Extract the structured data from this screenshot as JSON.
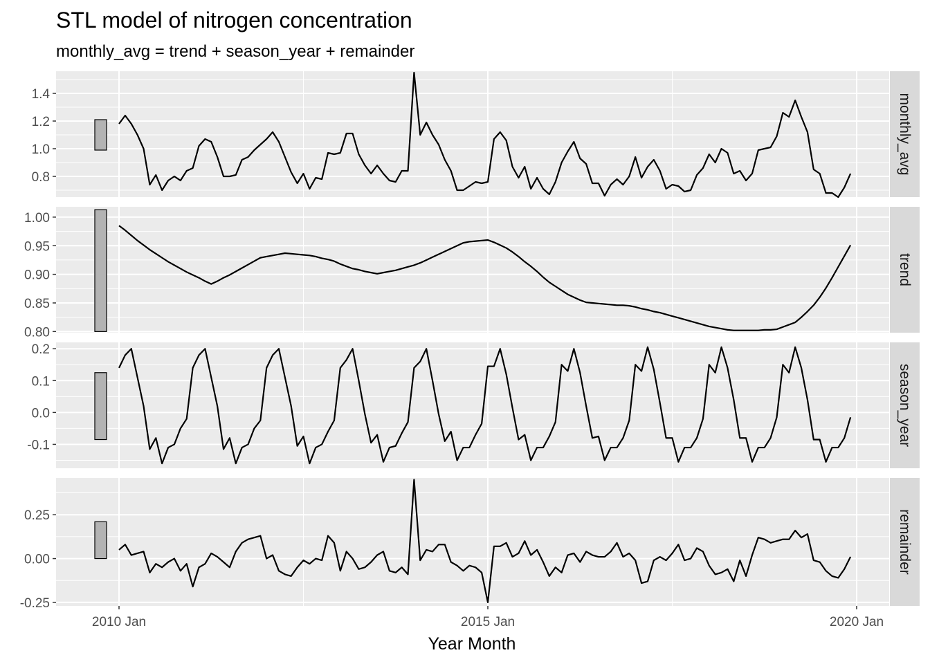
{
  "chart_data": {
    "type": "line",
    "title": "STL model of nitrogen concentration",
    "subtitle": "monthly_avg = trend + season_year + remainder",
    "xlabel": "Year Month",
    "x_start": "2010 Jan",
    "x_ticks": [
      "2010 Jan",
      "2015 Jan",
      "2020 Jan"
    ],
    "grid": true,
    "panels": [
      {
        "name": "monthly_avg",
        "ylim": [
          0.65,
          1.56
        ],
        "yticks": [
          0.8,
          1.0,
          1.2,
          1.4
        ],
        "ytick_labels": [
          "0.8",
          "1.0",
          "1.2",
          "1.4"
        ],
        "scale_bar": [
          0.99,
          1.21
        ],
        "values": [
          1.18,
          1.24,
          1.18,
          1.1,
          1.0,
          0.74,
          0.81,
          0.7,
          0.77,
          0.8,
          0.77,
          0.84,
          0.86,
          1.02,
          1.07,
          1.05,
          0.94,
          0.8,
          0.8,
          0.81,
          0.92,
          0.94,
          0.99,
          1.03,
          1.07,
          1.12,
          1.05,
          0.94,
          0.83,
          0.75,
          0.82,
          0.71,
          0.79,
          0.78,
          0.97,
          0.96,
          0.97,
          1.11,
          1.11,
          0.96,
          0.88,
          0.82,
          0.88,
          0.82,
          0.77,
          0.76,
          0.84,
          0.84,
          1.55,
          1.1,
          1.19,
          1.1,
          1.03,
          0.92,
          0.84,
          0.7,
          0.7,
          0.73,
          0.76,
          0.75,
          0.76,
          1.07,
          1.12,
          1.06,
          0.87,
          0.79,
          0.87,
          0.71,
          0.79,
          0.71,
          0.67,
          0.76,
          0.9,
          0.98,
          1.05,
          0.93,
          0.89,
          0.75,
          0.75,
          0.66,
          0.74,
          0.78,
          0.74,
          0.8,
          0.94,
          0.79,
          0.87,
          0.92,
          0.84,
          0.71,
          0.74,
          0.73,
          0.69,
          0.7,
          0.81,
          0.86,
          0.96,
          0.9,
          1.0,
          0.97,
          0.82,
          0.84,
          0.77,
          0.82,
          0.99,
          1.0,
          1.01,
          1.09,
          1.26,
          1.23,
          1.35,
          1.23,
          1.12,
          0.85,
          0.82,
          0.68,
          0.68,
          0.65,
          0.72,
          0.82
        ]
      },
      {
        "name": "trend",
        "ylim": [
          0.798,
          1.018
        ],
        "yticks": [
          0.8,
          0.85,
          0.9,
          0.95,
          1.0
        ],
        "ytick_labels": [
          "0.80",
          "0.85",
          "0.90",
          "0.95",
          "1.00"
        ],
        "scale_bar": [
          0.8,
          1.013
        ],
        "values": [
          0.985,
          0.977,
          0.968,
          0.959,
          0.951,
          0.943,
          0.936,
          0.929,
          0.922,
          0.916,
          0.91,
          0.904,
          0.899,
          0.894,
          0.888,
          0.883,
          0.888,
          0.894,
          0.899,
          0.905,
          0.911,
          0.917,
          0.923,
          0.929,
          0.931,
          0.933,
          0.935,
          0.937,
          0.936,
          0.935,
          0.934,
          0.933,
          0.931,
          0.928,
          0.926,
          0.923,
          0.918,
          0.914,
          0.91,
          0.908,
          0.905,
          0.903,
          0.901,
          0.903,
          0.905,
          0.907,
          0.91,
          0.913,
          0.916,
          0.92,
          0.925,
          0.93,
          0.935,
          0.94,
          0.945,
          0.95,
          0.955,
          0.957,
          0.958,
          0.959,
          0.96,
          0.956,
          0.951,
          0.946,
          0.939,
          0.931,
          0.922,
          0.914,
          0.905,
          0.895,
          0.886,
          0.879,
          0.872,
          0.865,
          0.86,
          0.855,
          0.851,
          0.85,
          0.849,
          0.848,
          0.847,
          0.846,
          0.846,
          0.845,
          0.843,
          0.84,
          0.838,
          0.835,
          0.833,
          0.83,
          0.827,
          0.824,
          0.821,
          0.818,
          0.815,
          0.812,
          0.809,
          0.807,
          0.805,
          0.803,
          0.802,
          0.802,
          0.802,
          0.802,
          0.802,
          0.803,
          0.803,
          0.804,
          0.808,
          0.812,
          0.816,
          0.825,
          0.835,
          0.846,
          0.86,
          0.876,
          0.894,
          0.913,
          0.932,
          0.951
        ]
      },
      {
        "name": "season_year",
        "ylim": [
          -0.175,
          0.22
        ],
        "yticks": [
          -0.1,
          0.0,
          0.1,
          0.2
        ],
        "ytick_labels": [
          "-0.1",
          "0.0",
          "0.1",
          "0.2"
        ],
        "scale_bar": [
          -0.085,
          0.125
        ],
        "values": [
          0.14,
          0.18,
          0.2,
          0.11,
          0.02,
          -0.115,
          -0.08,
          -0.16,
          -0.11,
          -0.1,
          -0.05,
          -0.02,
          0.14,
          0.18,
          0.2,
          0.11,
          0.02,
          -0.115,
          -0.08,
          -0.16,
          -0.11,
          -0.1,
          -0.05,
          -0.025,
          0.14,
          0.18,
          0.2,
          0.11,
          0.02,
          -0.105,
          -0.075,
          -0.16,
          -0.11,
          -0.1,
          -0.06,
          -0.025,
          0.14,
          0.165,
          0.2,
          0.1,
          -0.005,
          -0.095,
          -0.07,
          -0.155,
          -0.11,
          -0.105,
          -0.065,
          -0.03,
          0.14,
          0.16,
          0.2,
          0.1,
          -0.005,
          -0.09,
          -0.06,
          -0.15,
          -0.11,
          -0.11,
          -0.07,
          -0.035,
          0.145,
          0.145,
          0.2,
          0.12,
          0.015,
          -0.085,
          -0.07,
          -0.15,
          -0.11,
          -0.11,
          -0.075,
          -0.03,
          0.15,
          0.13,
          0.2,
          0.125,
          0.02,
          -0.08,
          -0.075,
          -0.15,
          -0.11,
          -0.11,
          -0.08,
          -0.025,
          0.15,
          0.13,
          0.205,
          0.135,
          0.03,
          -0.08,
          -0.08,
          -0.155,
          -0.11,
          -0.11,
          -0.08,
          -0.02,
          0.15,
          0.125,
          0.205,
          0.14,
          0.04,
          -0.08,
          -0.08,
          -0.155,
          -0.11,
          -0.11,
          -0.08,
          -0.015,
          0.15,
          0.125,
          0.205,
          0.14,
          0.04,
          -0.085,
          -0.085,
          -0.155,
          -0.11,
          -0.11,
          -0.08,
          -0.015
        ]
      },
      {
        "name": "remainder",
        "ylim": [
          -0.27,
          0.46
        ],
        "yticks": [
          -0.25,
          0.0,
          0.25
        ],
        "ytick_labels": [
          "-0.25",
          "0.00",
          "0.25"
        ],
        "scale_bar": [
          0.0,
          0.21
        ],
        "values": [
          0.05,
          0.08,
          0.02,
          0.03,
          0.04,
          -0.08,
          -0.03,
          -0.05,
          -0.02,
          0.0,
          -0.07,
          -0.03,
          -0.16,
          -0.05,
          -0.03,
          0.03,
          0.01,
          -0.02,
          -0.05,
          0.04,
          0.09,
          0.11,
          0.12,
          0.13,
          0.0,
          0.02,
          -0.07,
          -0.09,
          -0.1,
          -0.05,
          -0.01,
          -0.03,
          0.0,
          -0.01,
          0.13,
          0.09,
          -0.07,
          0.04,
          0.0,
          -0.06,
          -0.05,
          -0.02,
          0.02,
          0.04,
          -0.07,
          -0.08,
          -0.05,
          -0.09,
          0.45,
          -0.01,
          0.05,
          0.04,
          0.08,
          0.08,
          -0.02,
          -0.04,
          -0.07,
          -0.04,
          -0.05,
          -0.08,
          -0.25,
          0.07,
          0.07,
          0.09,
          0.01,
          0.03,
          0.1,
          0.02,
          0.05,
          -0.02,
          -0.1,
          -0.05,
          -0.08,
          0.02,
          0.03,
          -0.02,
          0.04,
          0.02,
          0.01,
          0.01,
          0.04,
          0.09,
          0.01,
          0.03,
          -0.01,
          -0.14,
          -0.13,
          -0.01,
          0.01,
          -0.01,
          0.03,
          0.08,
          -0.01,
          0.0,
          0.06,
          0.04,
          -0.04,
          -0.09,
          -0.08,
          -0.06,
          -0.13,
          -0.01,
          -0.1,
          0.02,
          0.12,
          0.11,
          0.09,
          0.1,
          0.11,
          0.11,
          0.16,
          0.12,
          0.14,
          -0.01,
          -0.02,
          -0.07,
          -0.1,
          -0.11,
          -0.06,
          0.01
        ]
      }
    ]
  }
}
